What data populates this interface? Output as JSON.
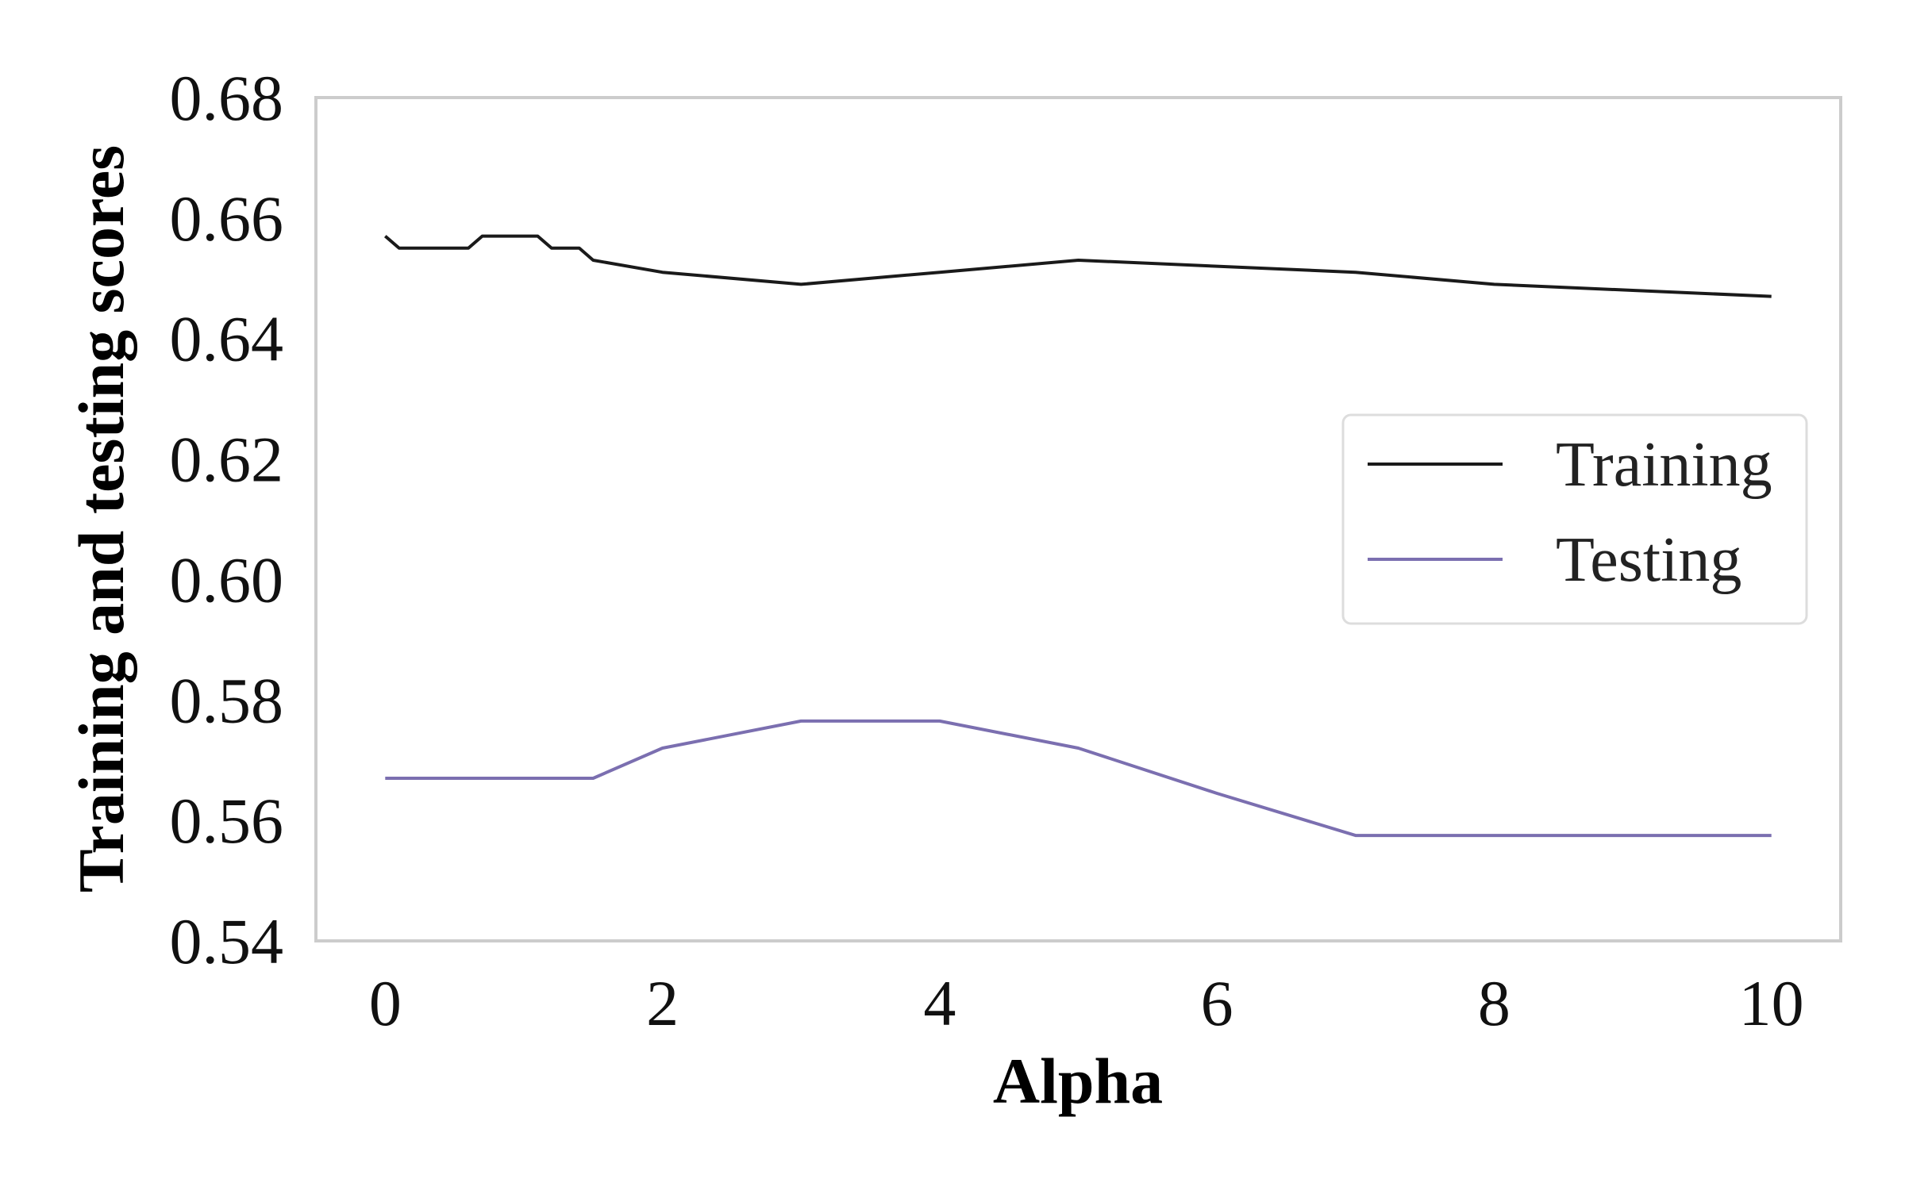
{
  "chart_data": {
    "type": "line",
    "xlabel": "Alpha",
    "ylabel": "Training and testing scores",
    "xlim": [
      -0.5,
      10.5
    ],
    "ylim": [
      0.54,
      0.68
    ],
    "x_ticks": [
      0,
      2,
      4,
      6,
      8,
      10
    ],
    "x_tick_labels": [
      "0",
      "2",
      "4",
      "6",
      "8",
      "10"
    ],
    "y_ticks": [
      0.54,
      0.56,
      0.58,
      0.6,
      0.62,
      0.64,
      0.66,
      0.68
    ],
    "y_tick_labels": [
      "0.54",
      "0.56",
      "0.58",
      "0.60",
      "0.62",
      "0.64",
      "0.66",
      "0.68"
    ],
    "grid": false,
    "legend_position": "center-right",
    "series": [
      {
        "name": "Training",
        "color": "#1a1a1a",
        "x": [
          0,
          0.1,
          0.2,
          0.3,
          0.4,
          0.5,
          0.6,
          0.7,
          0.8,
          0.9,
          1.0,
          1.1,
          1.2,
          1.3,
          1.4,
          1.5,
          2,
          3,
          4,
          5,
          6,
          7,
          8,
          9,
          10
        ],
        "y": [
          0.657,
          0.655,
          0.655,
          0.655,
          0.655,
          0.655,
          0.655,
          0.657,
          0.657,
          0.657,
          0.657,
          0.657,
          0.655,
          0.655,
          0.655,
          0.653,
          0.651,
          0.649,
          0.651,
          0.653,
          0.652,
          0.651,
          0.649,
          0.648,
          0.647
        ]
      },
      {
        "name": "Testing",
        "color": "#7b6fb0",
        "x": [
          0,
          0.5,
          1.0,
          1.5,
          2,
          3,
          4,
          5,
          6,
          7,
          8,
          9,
          10
        ],
        "y": [
          0.567,
          0.567,
          0.567,
          0.567,
          0.572,
          0.5765,
          0.5765,
          0.572,
          0.5645,
          0.5575,
          0.5575,
          0.5575,
          0.5575
        ]
      }
    ]
  }
}
